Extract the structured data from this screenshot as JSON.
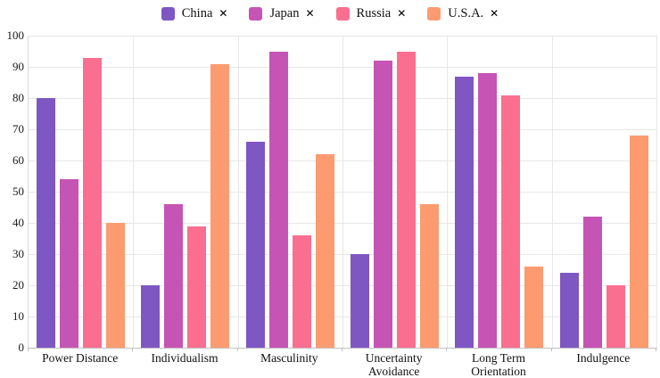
{
  "legend": {
    "remove_icon": "✕",
    "items": [
      {
        "label": "China",
        "color": "#7E57C2"
      },
      {
        "label": "Japan",
        "color": "#C654B5"
      },
      {
        "label": "Russia",
        "color": "#FA6E8F"
      },
      {
        "label": "U.S.A.",
        "color": "#FC9B6F"
      }
    ]
  },
  "chart_data": {
    "type": "bar",
    "title": "",
    "xlabel": "",
    "ylabel": "",
    "categories": [
      "Power Distance",
      "Individualism",
      "Masculinity",
      "Uncertainty Avoidance",
      "Long Term Orientation",
      "Indulgence"
    ],
    "series": [
      {
        "name": "China",
        "color": "#7E57C2",
        "values": [
          80,
          20,
          66,
          30,
          87,
          24
        ]
      },
      {
        "name": "Japan",
        "color": "#C654B5",
        "values": [
          54,
          46,
          95,
          92,
          88,
          42
        ]
      },
      {
        "name": "Russia",
        "color": "#FA6E8F",
        "values": [
          93,
          39,
          36,
          95,
          81,
          20
        ]
      },
      {
        "name": "U.S.A.",
        "color": "#FC9B6F",
        "values": [
          40,
          91,
          62,
          46,
          26,
          68
        ]
      }
    ],
    "ylim": [
      0,
      100
    ],
    "ytick_step": 10,
    "yticks": [
      0,
      10,
      20,
      30,
      40,
      50,
      60,
      70,
      80,
      90,
      100
    ],
    "grid": true,
    "legend_position": "top"
  },
  "colors": {
    "background": "#ffffff",
    "grid": "#e7e7e7",
    "axis": "#bfbfbf",
    "text": "#1a1a1a"
  }
}
